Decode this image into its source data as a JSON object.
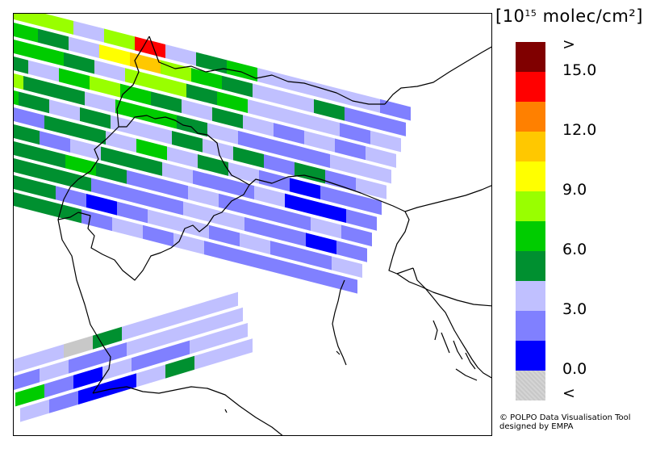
{
  "map": {
    "region": "Alps / Northern Italy",
    "variable": "tropospheric NO2 column (pixel grid)"
  },
  "legend": {
    "unit_prefix": "[10",
    "unit_exponent": "15",
    "unit_suffix": " molec/cm²]",
    "colors": [
      "#800000",
      "#ff0000",
      "#ff8000",
      "#ffc800",
      "#ffff00",
      "#99ff00",
      "#00cc00",
      "#009030",
      "#c0c0ff",
      "#8080ff",
      "#0000ff",
      "#c8c8c8"
    ],
    "labels": [
      ">",
      "15.0",
      "12.0",
      "9.0",
      "6.0",
      "3.0",
      "0.0",
      "<"
    ]
  },
  "credit": {
    "line1": "© POLPO Data Visualisation Tool",
    "line2": "designed by EMPA"
  },
  "swaths": [
    {
      "name": "upper-swath",
      "rows": [
        [
          "#009030",
          "#99ff00",
          "#99ff00",
          "#c0c0ff",
          "#99ff00",
          "#ff0000",
          "#c0c0ff",
          "#009030",
          "#00cc00",
          "#c0c0ff",
          "#c0c0ff",
          "#c0c0ff",
          "#c0c0ff",
          "#8080ff"
        ],
        [
          "#009030",
          "#00cc00",
          "#009030",
          "#c0c0ff",
          "#ffff00",
          "#ffc800",
          "#99ff00",
          "#00cc00",
          "#009030",
          "#c0c0ff",
          "#c0c0ff",
          "#009030",
          "#8080ff",
          "#8080ff"
        ],
        [
          "#8080ff",
          "#00cc00",
          "#00cc00",
          "#009030",
          "#c0c0ff",
          "#99ff00",
          "#99ff00",
          "#009030",
          "#00cc00",
          "#c0c0ff",
          "#c0c0ff",
          "#c0c0ff",
          "#8080ff",
          "#c0c0ff"
        ],
        [
          "#009030",
          "#009030",
          "#c0c0ff",
          "#00cc00",
          "#99ff00",
          "#00cc00",
          "#009030",
          "#c0c0ff",
          "#009030",
          "#c0c0ff",
          "#8080ff",
          "#c0c0ff",
          "#8080ff",
          "#c0c0ff"
        ],
        [
          "#c0c0ff",
          "#99ff00",
          "#009030",
          "#009030",
          "#c0c0ff",
          "#00cc00",
          "#00cc00",
          "#009030",
          "#c0c0ff",
          "#8080ff",
          "#8080ff",
          "#8080ff",
          "#c0c0ff",
          "#c0c0ff"
        ],
        [
          "#009030",
          "#00cc00",
          "#009030",
          "#c0c0ff",
          "#009030",
          "#c0c0ff",
          "#c0c0ff",
          "#009030",
          "#c0c0ff",
          "#009030",
          "#8080ff",
          "#009030",
          "#8080ff",
          "#c0c0ff"
        ],
        [
          "#00cc00",
          "#009030",
          "#8080ff",
          "#009030",
          "#009030",
          "#c0c0ff",
          "#00cc00",
          "#c0c0ff",
          "#009030",
          "#c0c0ff",
          "#8080ff",
          "#0000ff",
          "#8080ff",
          "#8080ff"
        ],
        [
          "#009030",
          "#009030",
          "#009030",
          "#8080ff",
          "#c0c0ff",
          "#009030",
          "#009030",
          "#c0c0ff",
          "#8080ff",
          "#8080ff",
          "#c0c0ff",
          "#0000ff",
          "#0000ff",
          "#8080ff"
        ],
        [
          "#009030",
          "#009030",
          "#009030",
          "#009030",
          "#00cc00",
          "#009030",
          "#8080ff",
          "#8080ff",
          "#c0c0ff",
          "#8080ff",
          "#8080ff",
          "#8080ff",
          "#c0c0ff",
          "#8080ff"
        ],
        [
          "#009030",
          "#009030",
          "#009030",
          "#009030",
          "#009030",
          "#8080ff",
          "#8080ff",
          "#8080ff",
          "#c0c0ff",
          "#c0c0ff",
          "#8080ff",
          "#8080ff",
          "#0000ff",
          "#8080ff"
        ],
        [
          "#009030",
          "#009030",
          "#009030",
          "#009030",
          "#8080ff",
          "#0000ff",
          "#8080ff",
          "#c0c0ff",
          "#c0c0ff",
          "#8080ff",
          "#c0c0ff",
          "#8080ff",
          "#8080ff",
          "#c0c0ff"
        ],
        [
          "#009030",
          "#009030",
          "#009030",
          "#009030",
          "#009030",
          "#8080ff",
          "#c0c0ff",
          "#8080ff",
          "#c0c0ff",
          "#8080ff",
          "#8080ff",
          "#8080ff",
          "#8080ff",
          "#8080ff"
        ]
      ]
    },
    {
      "name": "lower-swath",
      "rows": [
        [
          "#c0c0ff",
          "#c0c0ff",
          "#c8c8c8",
          "#009030",
          "#c0c0ff",
          "#c0c0ff",
          "#c0c0ff",
          "#c0c0ff"
        ],
        [
          "#8080ff",
          "#c0c0ff",
          "#8080ff",
          "#8080ff",
          "#c0c0ff",
          "#c0c0ff",
          "#c0c0ff",
          "#c0c0ff"
        ],
        [
          "#00cc00",
          "#8080ff",
          "#0000ff",
          "#c0c0ff",
          "#8080ff",
          "#8080ff",
          "#c0c0ff",
          "#c0c0ff"
        ],
        [
          "#c0c0ff",
          "#8080ff",
          "#0000ff",
          "#0000ff",
          "#c0c0ff",
          "#009030",
          "#c0c0ff",
          "#c0c0ff"
        ]
      ]
    }
  ]
}
